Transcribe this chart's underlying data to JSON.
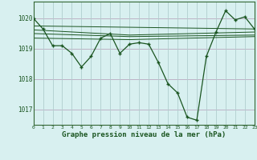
{
  "title": "Graphe pression niveau de la mer (hPa)",
  "background_color": "#c8eaea",
  "plot_bg": "#d8f0f0",
  "grid_color_h": "#c0b8c8",
  "grid_color_v": "#c0d8d8",
  "line_color": "#1a5520",
  "xlim": [
    0,
    23
  ],
  "ylim": [
    1016.5,
    1020.55
  ],
  "yticks": [
    1017,
    1018,
    1019,
    1020
  ],
  "xticks": [
    0,
    1,
    2,
    3,
    4,
    5,
    6,
    7,
    8,
    9,
    10,
    11,
    12,
    13,
    14,
    15,
    16,
    17,
    18,
    19,
    20,
    21,
    22,
    23
  ],
  "main_line_x": [
    0,
    1,
    2,
    3,
    4,
    5,
    6,
    7,
    8,
    9,
    10,
    11,
    12,
    13,
    14,
    15,
    16,
    17,
    18,
    19,
    20,
    21,
    22,
    23
  ],
  "main_line_y": [
    1020.0,
    1019.65,
    1019.1,
    1019.1,
    1018.85,
    1018.4,
    1018.75,
    1019.35,
    1019.5,
    1018.85,
    1019.15,
    1019.2,
    1019.15,
    1018.55,
    1017.85,
    1017.55,
    1016.75,
    1016.65,
    1018.75,
    1019.55,
    1020.25,
    1019.95,
    1020.05,
    1019.65
  ],
  "trend_lines": [
    {
      "x": [
        0,
        23
      ],
      "y": [
        1019.75,
        1019.65
      ]
    },
    {
      "x": [
        0,
        10,
        23
      ],
      "y": [
        1019.62,
        1019.45,
        1019.55
      ]
    },
    {
      "x": [
        0,
        10,
        23
      ],
      "y": [
        1019.5,
        1019.4,
        1019.45
      ]
    },
    {
      "x": [
        0,
        10,
        23
      ],
      "y": [
        1019.35,
        1019.3,
        1019.4
      ]
    }
  ]
}
